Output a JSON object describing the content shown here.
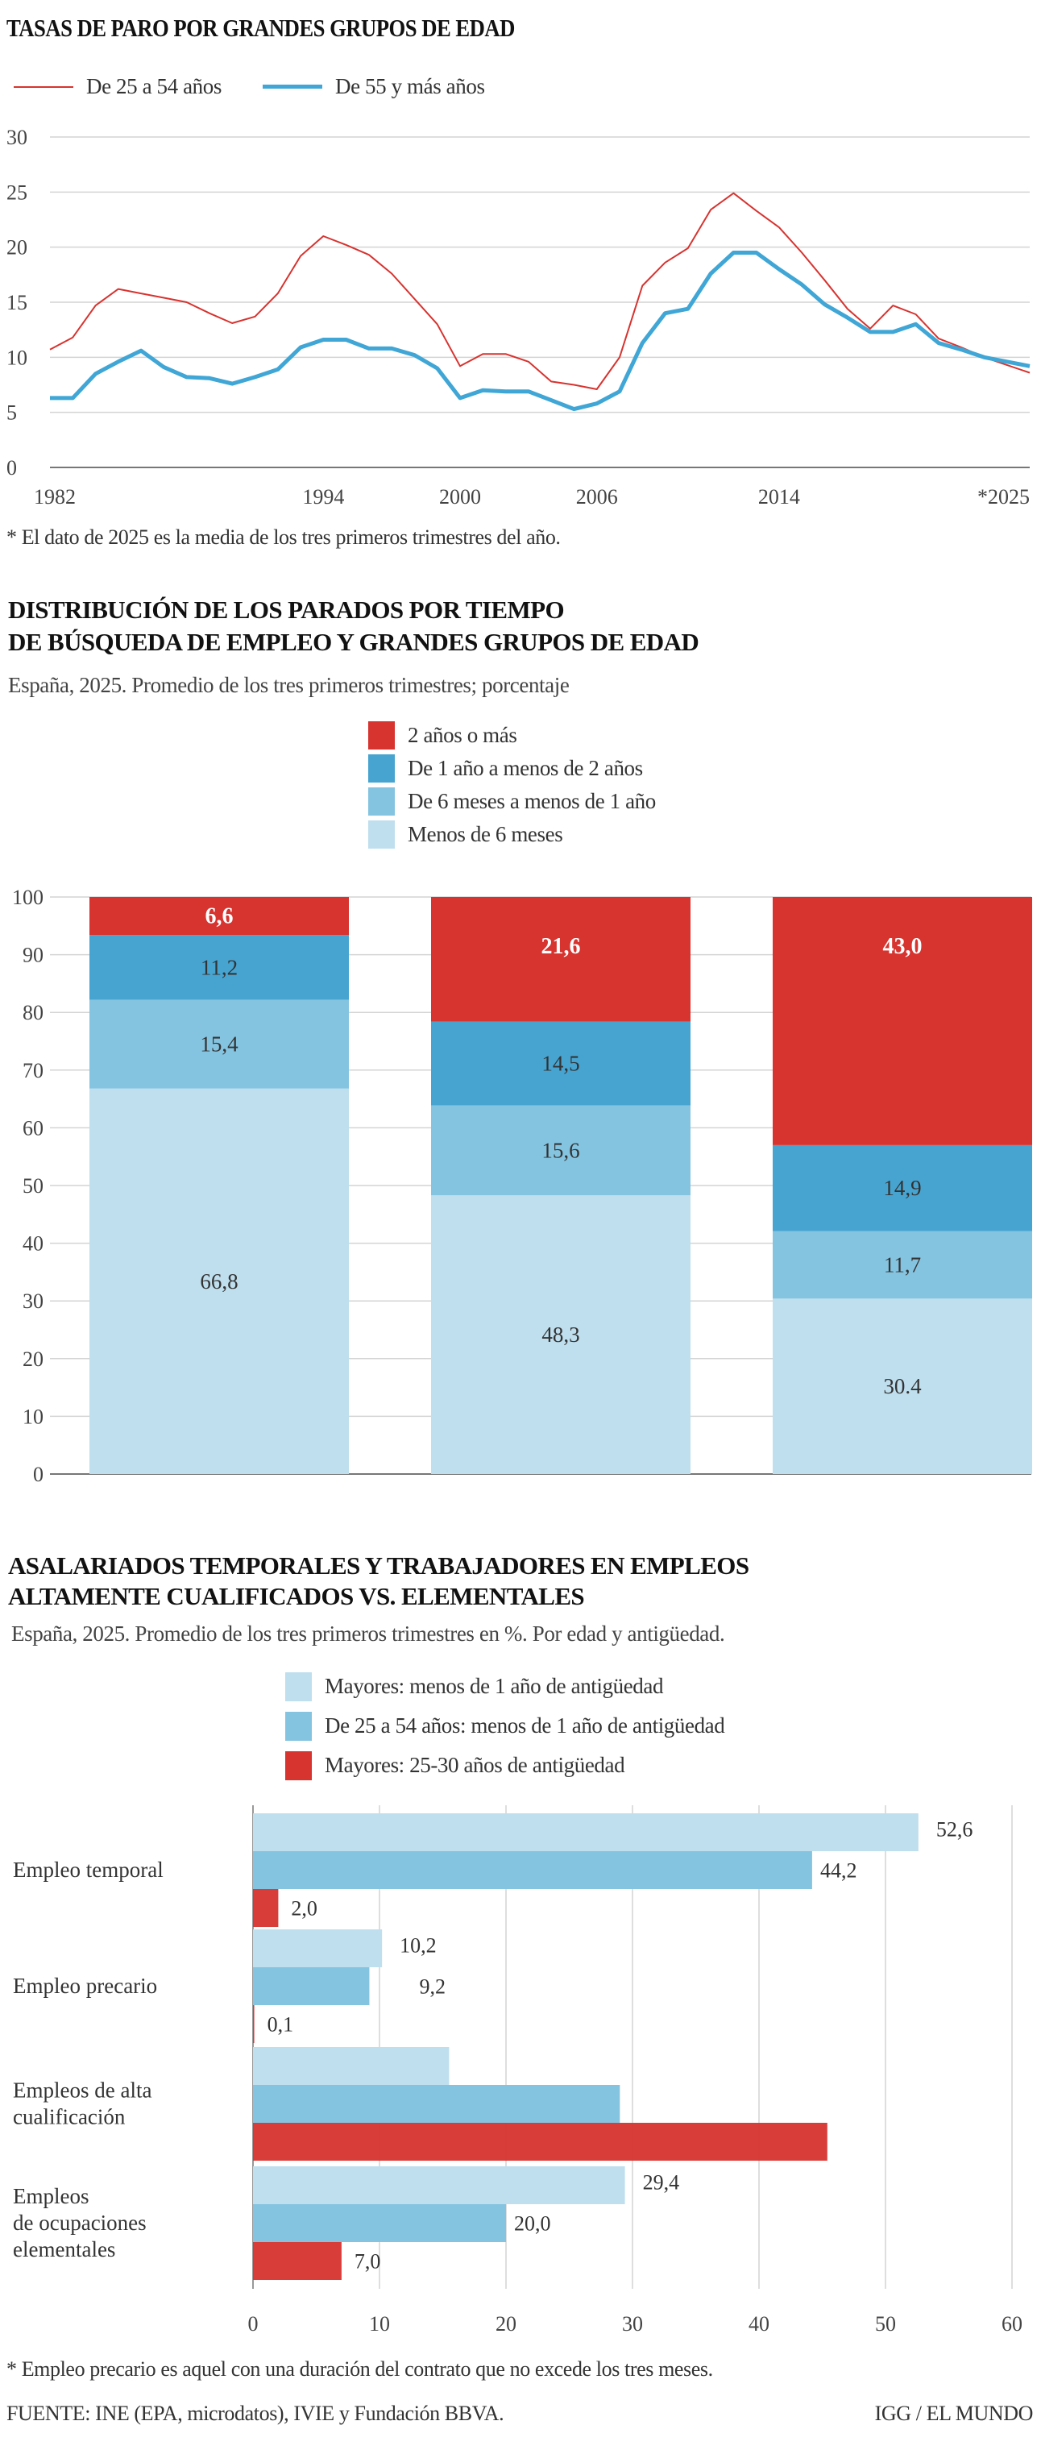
{
  "colors": {
    "red": "#d7332f",
    "blue": "#3fa6d6",
    "dark_blue": "#47a4d0",
    "mid_blue": "#85c4e0",
    "light_blue": "#bfdfee",
    "grid": "#d4d4d4"
  },
  "chart1": {
    "title": "TASAS DE PARO POR GRANDES GRUPOS DE EDAD",
    "footnote": "* El dato de 2025 es la media de los tres primeros trimestres del año."
  },
  "chart2": {
    "title_line1": "DISTRIBUCIÓN DE LOS PARADOS POR TIEMPO",
    "title_line2": "DE BÚSQUEDA DE EMPLEO Y GRANDES GRUPOS DE EDAD",
    "subtitle": "España, 2025. Promedio de los tres primeros trimestres; porcentaje"
  },
  "chart3": {
    "title_line1": "ASALARIADOS TEMPORALES Y TRABAJADORES EN EMPLEOS",
    "title_line2": "ALTAMENTE CUALIFICADOS VS. ELEMENTALES",
    "subtitle": "España, 2025. Promedio de los tres primeros trimestres en %. Por edad y antigüedad.",
    "footnote": "* Empleo precario es aquel con una duración del contrato que no excede los tres meses."
  },
  "footer": {
    "source": "FUENTE: INE (EPA, microdatos), IVIE y Fundación BBVA.",
    "credit": "IGG / EL MUNDO"
  },
  "chart_data": [
    {
      "type": "line",
      "title": "TASAS DE PARO POR GRANDES GRUPOS DE EDAD",
      "ylim": [
        0,
        30
      ],
      "yticks": [
        "0",
        "5",
        "10",
        "15",
        "20",
        "25",
        "30"
      ],
      "xlim": [
        1982,
        2025
      ],
      "xticks": [
        {
          "value": 1982,
          "label": "1982"
        },
        {
          "value": 1994,
          "label": "1994"
        },
        {
          "value": 2000,
          "label": "2000"
        },
        {
          "value": 2006,
          "label": "2006"
        },
        {
          "value": 2014,
          "label": "2014"
        },
        {
          "value": 2025,
          "label": "*2025"
        }
      ],
      "grid": true,
      "legend": "top-left",
      "x": [
        1982,
        1983,
        1984,
        1985,
        1986,
        1987,
        1988,
        1989,
        1990,
        1991,
        1992,
        1993,
        1994,
        1995,
        1996,
        1997,
        1998,
        1999,
        2000,
        2001,
        2002,
        2003,
        2004,
        2005,
        2006,
        2007,
        2008,
        2009,
        2010,
        2011,
        2012,
        2013,
        2014,
        2015,
        2016,
        2017,
        2018,
        2019,
        2020,
        2021,
        2022,
        2023,
        2024,
        2025
      ],
      "series": [
        {
          "name": "De 25 a 54 años",
          "color": "#d7332f",
          "values": [
            10.7,
            11.8,
            14.7,
            16.2,
            15.8,
            15.4,
            15.0,
            14.0,
            13.1,
            13.7,
            15.8,
            19.2,
            21.0,
            20.2,
            19.3,
            17.6,
            15.3,
            13.0,
            9.2,
            10.3,
            10.3,
            9.6,
            7.8,
            7.5,
            7.1,
            10.0,
            16.5,
            18.6,
            19.9,
            23.4,
            24.9,
            23.3,
            21.8,
            19.5,
            17.0,
            14.4,
            12.6,
            14.7,
            13.9,
            11.7,
            10.9,
            10.0,
            9.3,
            8.6
          ]
        },
        {
          "name": "De 55 y más años",
          "color": "#3fa6d6",
          "values": [
            6.3,
            6.3,
            8.5,
            9.6,
            10.6,
            9.1,
            8.2,
            8.1,
            7.6,
            8.2,
            8.9,
            10.9,
            11.6,
            11.6,
            10.8,
            10.8,
            10.2,
            9.0,
            6.3,
            7.0,
            6.9,
            6.9,
            6.1,
            5.3,
            5.8,
            6.9,
            11.3,
            14.0,
            14.4,
            17.6,
            19.5,
            19.5,
            18.0,
            16.6,
            14.8,
            13.6,
            12.3,
            12.3,
            13.0,
            11.3,
            10.7,
            10.0,
            9.6,
            9.2
          ]
        }
      ]
    },
    {
      "type": "bar",
      "stacked": true,
      "ylim": [
        0,
        100
      ],
      "yticks": [
        "0",
        "10",
        "20",
        "30",
        "40",
        "50",
        "60",
        "70",
        "80",
        "90",
        "100"
      ],
      "grid": true,
      "legend": "top-center",
      "categories": [
        "",
        "",
        ""
      ],
      "series": [
        {
          "name": "Menos de 6 meses",
          "color": "#bfdfee",
          "values": [
            66.8,
            48.3,
            30.4
          ],
          "labels": [
            "66,8",
            "48,3",
            "30.4"
          ]
        },
        {
          "name": "De 6 meses a menos de 1 año",
          "color": "#85c4e0",
          "values": [
            15.4,
            15.6,
            11.7
          ],
          "labels": [
            "15,4",
            "15,6",
            "11,7"
          ]
        },
        {
          "name": "De 1 año a menos de 2 años",
          "color": "#47a4d0",
          "values": [
            11.2,
            14.5,
            14.9
          ],
          "labels": [
            "11,2",
            "14,5",
            "14,9"
          ]
        },
        {
          "name": "2 años o más",
          "color": "#d7332f",
          "values": [
            6.6,
            21.6,
            43.0
          ],
          "labels": [
            "6,6",
            "21,6",
            "43,0"
          ]
        }
      ]
    },
    {
      "type": "bar",
      "orientation": "horizontal",
      "xlim": [
        0,
        60
      ],
      "xticks": [
        "0",
        "10",
        "20",
        "30",
        "40",
        "50",
        "60"
      ],
      "grid": true,
      "legend": "top-center",
      "categories": [
        [
          "Empleo temporal"
        ],
        [
          "Empleo precario"
        ],
        [
          "Empleos de alta",
          "cualificación"
        ],
        [
          "Empleos",
          "de ocupaciones",
          "elementales"
        ]
      ],
      "series": [
        {
          "name": "Mayores: menos de 1 año de antigüedad",
          "color": "#bfdfee",
          "values": [
            52.6,
            10.2,
            15.5,
            29.4
          ],
          "labels": [
            "52,6",
            "10,2",
            "",
            "29,4"
          ]
        },
        {
          "name": "De 25 a 54 años: menos de 1 año de antigüedad",
          "color": "#85c4e0",
          "values": [
            44.2,
            9.2,
            29.0,
            20.0
          ],
          "labels": [
            "44,2",
            "9,2",
            "",
            "20,0"
          ]
        },
        {
          "name": "Mayores: 25-30 años de antigüedad",
          "color": "#d7332f",
          "values": [
            2.0,
            0.1,
            45.4,
            7.0
          ],
          "labels": [
            "2,0",
            "0,1",
            "",
            "7,0"
          ]
        }
      ]
    }
  ]
}
